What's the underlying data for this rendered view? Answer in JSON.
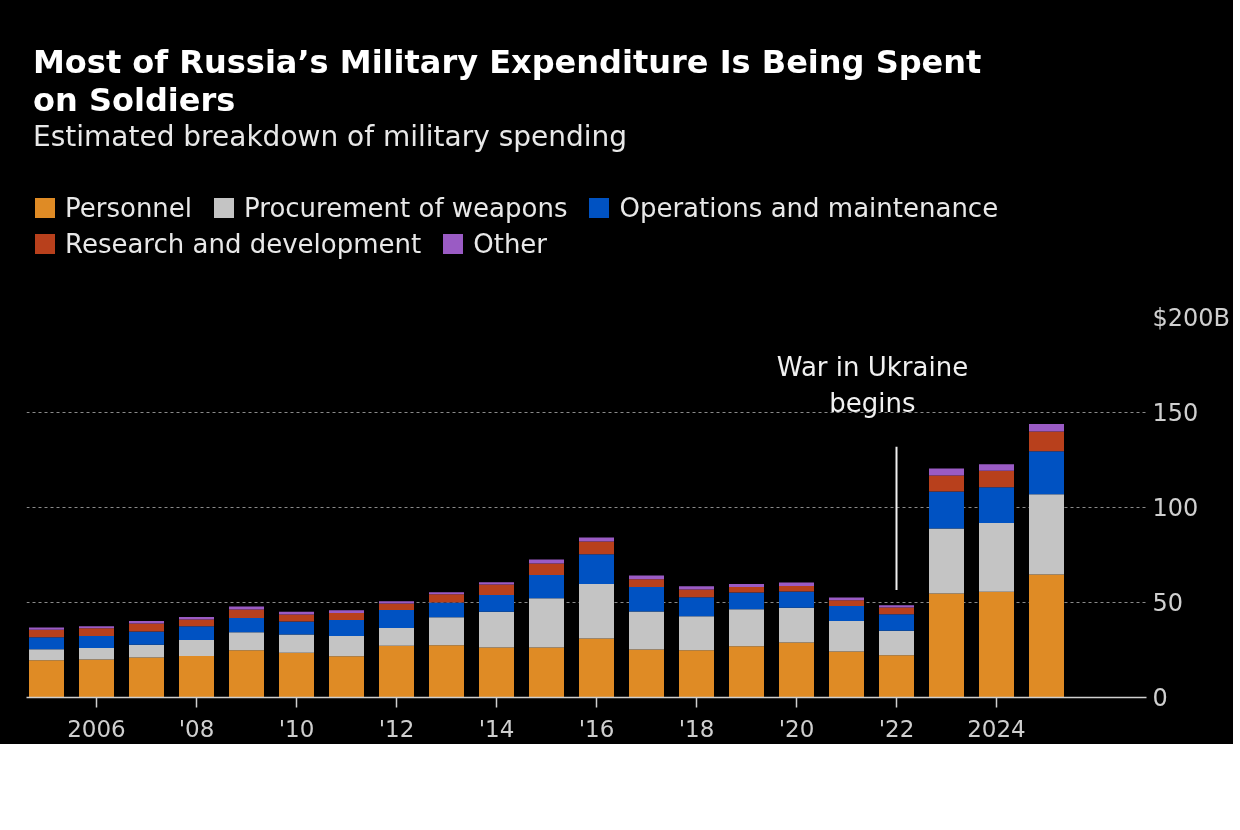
{
  "chart_data": {
    "type": "bar",
    "title": "Most of Russia’s Military Expenditure Is Being Spent on Soldiers",
    "subtitle": "Estimated breakdown of military spending",
    "stacked": true,
    "x": [
      2005,
      2006,
      2007,
      2008,
      2009,
      2010,
      2011,
      2012,
      2013,
      2014,
      2015,
      2016,
      2017,
      2018,
      2019,
      2020,
      2021,
      2022,
      2023,
      2024,
      2025
    ],
    "series": [
      {
        "name": "Personnel",
        "color": "#df8b25",
        "values": [
          19.6,
          20.0,
          21.0,
          21.9,
          24.9,
          23.5,
          21.7,
          27.2,
          27.5,
          26.3,
          26.3,
          31.0,
          25.3,
          24.9,
          27.0,
          28.9,
          24.2,
          22.3,
          54.7,
          55.6,
          64.7
        ]
      },
      {
        "name": "Procurement of weapons",
        "color": "#c4c4c4",
        "values": [
          5.8,
          6.1,
          6.7,
          8.3,
          9.5,
          9.7,
          10.7,
          9.4,
          14.8,
          18.8,
          26.0,
          28.8,
          20.0,
          17.9,
          19.5,
          18.3,
          16.1,
          12.8,
          34.2,
          36.3,
          42.3
        ]
      },
      {
        "name": "Operations and maintenance",
        "color": "#0052c2",
        "values": [
          6.3,
          6.3,
          7.0,
          7.3,
          7.5,
          6.8,
          8.4,
          9.5,
          7.7,
          8.9,
          12.2,
          15.6,
          12.8,
          10.0,
          8.8,
          8.6,
          7.8,
          8.7,
          19.5,
          18.8,
          22.6
        ]
      },
      {
        "name": "Research and development",
        "color": "#b8401c",
        "values": [
          3.9,
          4.1,
          4.2,
          3.5,
          4.4,
          3.7,
          3.7,
          3.4,
          4.4,
          5.5,
          6.0,
          6.7,
          4.2,
          4.0,
          2.8,
          2.9,
          3.1,
          3.6,
          8.4,
          8.6,
          10.4
        ]
      },
      {
        "name": "Other",
        "color": "#9a5bc4",
        "values": [
          1.2,
          1.0,
          1.3,
          1.4,
          1.6,
          1.4,
          1.4,
          1.2,
          1.0,
          1.2,
          2.1,
          2.1,
          1.9,
          1.8,
          1.7,
          1.8,
          1.4,
          1.2,
          3.7,
          3.5,
          4.0
        ]
      }
    ],
    "xlim": [
      2004.6,
      2027
    ],
    "ylim": [
      0,
      200
    ],
    "xticks": [
      {
        "value": 2006,
        "label": "2006"
      },
      {
        "value": 2008,
        "label": "'08"
      },
      {
        "value": 2010,
        "label": "'10"
      },
      {
        "value": 2012,
        "label": "'12"
      },
      {
        "value": 2014,
        "label": "'14"
      },
      {
        "value": 2016,
        "label": "'16"
      },
      {
        "value": 2018,
        "label": "'18"
      },
      {
        "value": 2020,
        "label": "'20"
      },
      {
        "value": 2022,
        "label": "'22"
      },
      {
        "value": 2024,
        "label": "2024"
      }
    ],
    "yticks": [
      0,
      50,
      100,
      150,
      {
        "value": 200,
        "label": "$200B"
      }
    ],
    "grid": "y",
    "legend": "top left",
    "ref_lines": [
      {
        "axis": "x",
        "value": 2022,
        "label": "War in Ukraine\nbegins",
        "color": "#f0f0f0"
      }
    ]
  }
}
